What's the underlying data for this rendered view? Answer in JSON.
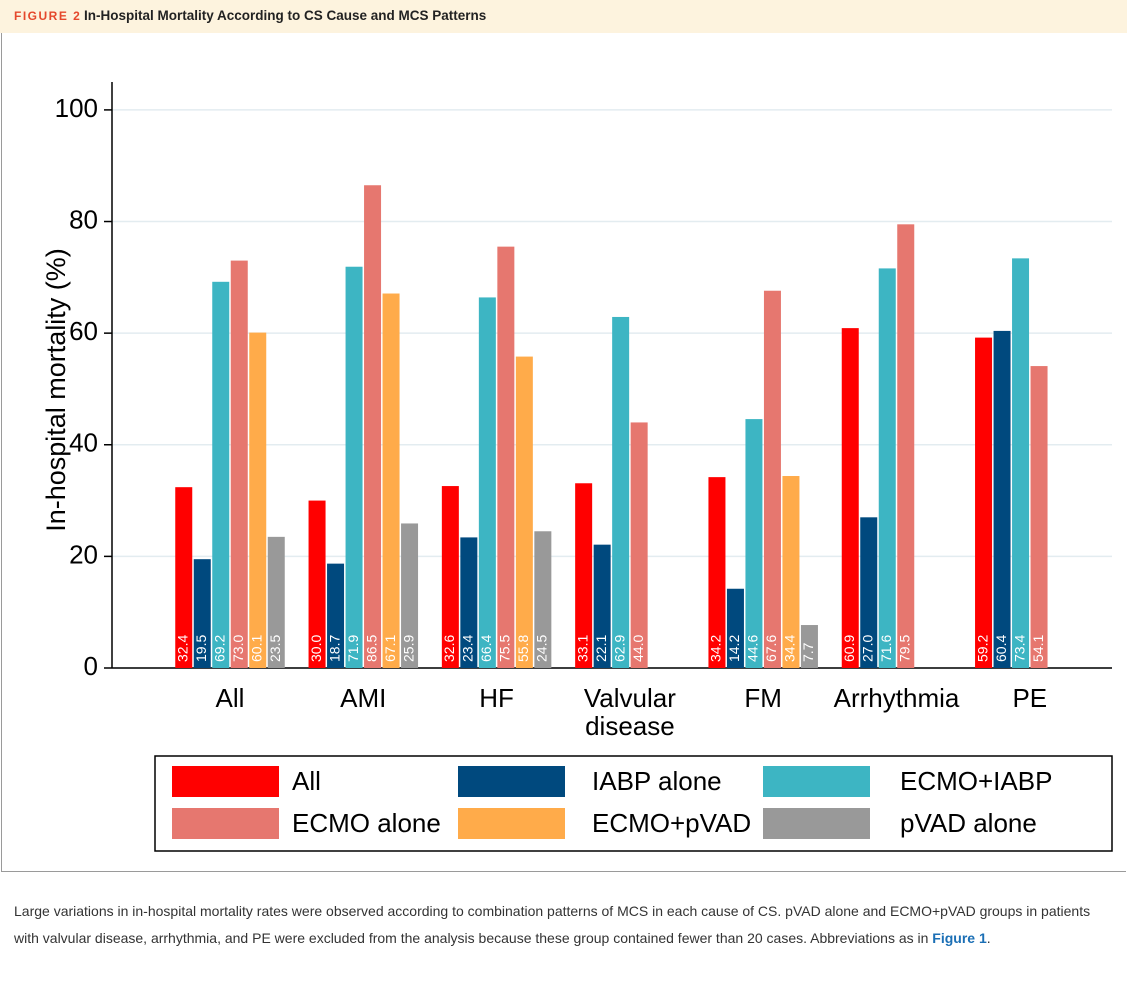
{
  "figure": {
    "label": "FIGURE 2",
    "title": "In-Hospital Mortality According to CS Cause and MCS Patterns",
    "caption": [
      "Large variations in in-hospital mortality rates were observed according to combination patterns of MCS in each cause of CS. pVAD alone and ECMO+pVAD groups in patients with valvular disease, arrhythmia, and PE were excluded from the analysis because these group contained fewer than 20 cases. Abbreviations as in ",
      "Figure 1",
      "."
    ]
  },
  "chart_data": {
    "type": "bar",
    "y_label": "In-hospital mortality (%)",
    "categories": [
      "All",
      "AMI",
      "HF",
      "Valvular disease",
      "FM",
      "Arrhythmia",
      "PE"
    ],
    "series": [
      {
        "name": "All",
        "color": "#ff0000",
        "values": [
          32.4,
          30.0,
          32.6,
          33.1,
          34.2,
          60.9,
          59.2
        ],
        "value_labels": [
          "32.4",
          "30.0",
          "32.6",
          "33.1",
          "34.2",
          "60.9",
          "59.2"
        ]
      },
      {
        "name": "IABP alone",
        "color": "#00497e",
        "values": [
          19.5,
          18.7,
          23.4,
          22.1,
          14.2,
          27.0,
          60.4
        ],
        "value_labels": [
          "19.5",
          "18.7",
          "23.4",
          "22.1",
          "14.2",
          "27.0",
          "60.4"
        ]
      },
      {
        "name": "ECMO+IABP",
        "color": "#3db5c3",
        "values": [
          69.2,
          71.9,
          66.4,
          62.9,
          44.6,
          71.6,
          73.4
        ],
        "value_labels": [
          "69.2",
          "71.9",
          "66.4",
          "62.9",
          "44.6",
          "71.6",
          "73.4"
        ]
      },
      {
        "name": "ECMO alone",
        "color": "#e6776f",
        "values": [
          73.0,
          86.5,
          75.5,
          44.0,
          67.6,
          79.5,
          54.1
        ],
        "value_labels": [
          "73.0",
          "86.5",
          "75.5",
          "44.0",
          "67.6",
          "79.5",
          "54.1"
        ]
      },
      {
        "name": "ECMO+pVAD",
        "color": "#ffab4a",
        "values": [
          60.1,
          67.1,
          55.8,
          null,
          34.4,
          null,
          null
        ],
        "value_labels": [
          "60.1",
          "67.1",
          "55.8",
          null,
          "34.4",
          null,
          null
        ]
      },
      {
        "name": "pVAD alone",
        "color": "#999999",
        "values": [
          23.5,
          25.9,
          24.5,
          null,
          7.7,
          null,
          null
        ],
        "value_labels": [
          "23.5",
          "25.9",
          "24.5",
          null,
          "7.7",
          null,
          null
        ]
      }
    ],
    "ylim": [
      0,
      105
    ],
    "yticks": [
      0,
      20,
      40,
      60,
      80,
      100
    ],
    "grid": true,
    "legend": "bottom"
  }
}
